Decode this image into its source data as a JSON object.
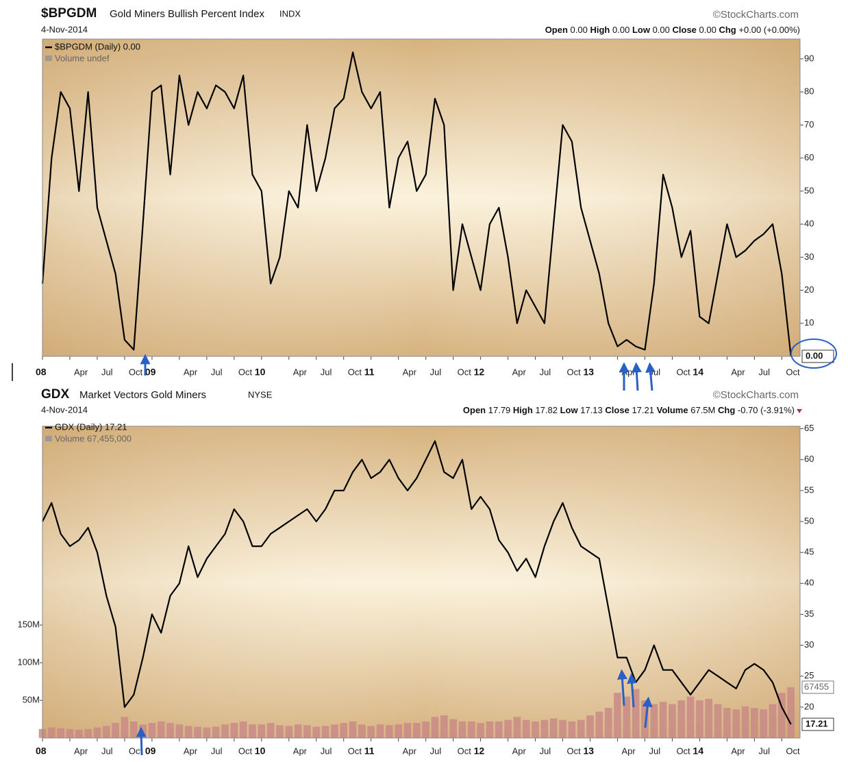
{
  "chart_data": [
    {
      "type": "line",
      "symbol": "$BPGDM",
      "title": "Gold Miners Bullish Percent Index",
      "exchange": "INDX",
      "source": "©StockCharts.com",
      "date": "4-Nov-2014",
      "header_stats": [
        {
          "label": "Open",
          "value": "0.00"
        },
        {
          "label": "High",
          "value": "0.00"
        },
        {
          "label": "Low",
          "value": "0.00"
        },
        {
          "label": "Close",
          "value": "0.00"
        },
        {
          "label": "Chg",
          "value": "+0.00 (+0.00%)"
        }
      ],
      "legend_main": "$BPGDM (Daily) 0.00",
      "legend_volume": "Volume undef",
      "last_label": "0.00",
      "x": [
        "2008-01",
        "2008-02",
        "2008-03",
        "2008-04",
        "2008-05",
        "2008-06",
        "2008-07",
        "2008-08",
        "2008-09",
        "2008-10",
        "2008-11",
        "2008-12",
        "2009-01",
        "2009-02",
        "2009-03",
        "2009-04",
        "2009-05",
        "2009-06",
        "2009-07",
        "2009-08",
        "2009-09",
        "2009-10",
        "2009-11",
        "2009-12",
        "2010-01",
        "2010-02",
        "2010-03",
        "2010-04",
        "2010-05",
        "2010-06",
        "2010-07",
        "2010-08",
        "2010-09",
        "2010-10",
        "2010-11",
        "2010-12",
        "2011-01",
        "2011-02",
        "2011-03",
        "2011-04",
        "2011-05",
        "2011-06",
        "2011-07",
        "2011-08",
        "2011-09",
        "2011-10",
        "2011-11",
        "2011-12",
        "2012-01",
        "2012-02",
        "2012-03",
        "2012-04",
        "2012-05",
        "2012-06",
        "2012-07",
        "2012-08",
        "2012-09",
        "2012-10",
        "2012-11",
        "2012-12",
        "2013-01",
        "2013-02",
        "2013-03",
        "2013-04",
        "2013-05",
        "2013-06",
        "2013-07",
        "2013-08",
        "2013-09",
        "2013-10",
        "2013-11",
        "2013-12",
        "2014-01",
        "2014-02",
        "2014-03",
        "2014-04",
        "2014-05",
        "2014-06",
        "2014-07",
        "2014-08",
        "2014-09",
        "2014-10",
        "2014-11"
      ],
      "series": [
        {
          "name": "$BPGDM",
          "color": "#000000",
          "values": [
            22,
            60,
            80,
            75,
            50,
            80,
            45,
            35,
            25,
            5,
            2,
            40,
            80,
            82,
            55,
            85,
            70,
            80,
            75,
            82,
            80,
            75,
            85,
            55,
            50,
            22,
            30,
            50,
            45,
            70,
            50,
            60,
            75,
            78,
            92,
            80,
            75,
            80,
            45,
            60,
            65,
            50,
            55,
            78,
            70,
            20,
            40,
            30,
            20,
            40,
            45,
            30,
            10,
            20,
            15,
            10,
            40,
            70,
            65,
            45,
            35,
            25,
            10,
            3,
            5,
            3,
            2,
            22,
            55,
            45,
            30,
            38,
            12,
            10,
            25,
            40,
            30,
            32,
            35,
            37,
            40,
            25,
            0
          ]
        }
      ],
      "xlim": [
        "2008-01",
        "2014-12"
      ],
      "xticks": [
        {
          "value": "2008-01",
          "label": "08"
        },
        {
          "value": "2008-04",
          "label": "Apr"
        },
        {
          "value": "2008-07",
          "label": "Jul"
        },
        {
          "value": "2008-10",
          "label": "Oct"
        },
        {
          "value": "2009-01",
          "label": "09"
        },
        {
          "value": "2009-04",
          "label": "Apr"
        },
        {
          "value": "2009-07",
          "label": "Jul"
        },
        {
          "value": "2009-10",
          "label": "Oct"
        },
        {
          "value": "2010-01",
          "label": "10"
        },
        {
          "value": "2010-04",
          "label": "Apr"
        },
        {
          "value": "2010-07",
          "label": "Jul"
        },
        {
          "value": "2010-10",
          "label": "Oct"
        },
        {
          "value": "2011-01",
          "label": "11"
        },
        {
          "value": "2011-04",
          "label": "Apr"
        },
        {
          "value": "2011-07",
          "label": "Jul"
        },
        {
          "value": "2011-10",
          "label": "Oct"
        },
        {
          "value": "2012-01",
          "label": "12"
        },
        {
          "value": "2012-04",
          "label": "Apr"
        },
        {
          "value": "2012-07",
          "label": "Jul"
        },
        {
          "value": "2012-10",
          "label": "Oct"
        },
        {
          "value": "2013-01",
          "label": "13"
        },
        {
          "value": "2013-04",
          "label": "Apr"
        },
        {
          "value": "2013-07",
          "label": "Jul"
        },
        {
          "value": "2013-10",
          "label": "Oct"
        },
        {
          "value": "2014-01",
          "label": "14"
        },
        {
          "value": "2014-04",
          "label": "Apr"
        },
        {
          "value": "2014-07",
          "label": "Jul"
        },
        {
          "value": "2014-10",
          "label": "Oct"
        }
      ],
      "ylim": [
        0,
        96
      ],
      "yticks": [
        10,
        20,
        30,
        40,
        50,
        60,
        70,
        80,
        90
      ],
      "grid": false
    },
    {
      "type": "line",
      "symbol": "GDX",
      "title": "Market Vectors Gold Miners",
      "exchange": "NYSE",
      "source": "©StockCharts.com",
      "date": "4-Nov-2014",
      "header_stats": [
        {
          "label": "Open",
          "value": "17.79"
        },
        {
          "label": "High",
          "value": "17.82"
        },
        {
          "label": "Low",
          "value": "17.13"
        },
        {
          "label": "Close",
          "value": "17.21"
        },
        {
          "label": "Volume",
          "value": "67.5M"
        },
        {
          "label": "Chg",
          "value": "-0.70 (-3.91%)"
        }
      ],
      "legend_main": "GDX (Daily) 17.21",
      "legend_volume": "Volume 67,455,000",
      "last_label": "17.21",
      "last_volume_label": "67455",
      "x": [
        "2008-01",
        "2008-02",
        "2008-03",
        "2008-04",
        "2008-05",
        "2008-06",
        "2008-07",
        "2008-08",
        "2008-09",
        "2008-10",
        "2008-11",
        "2008-12",
        "2009-01",
        "2009-02",
        "2009-03",
        "2009-04",
        "2009-05",
        "2009-06",
        "2009-07",
        "2009-08",
        "2009-09",
        "2009-10",
        "2009-11",
        "2009-12",
        "2010-01",
        "2010-02",
        "2010-03",
        "2010-04",
        "2010-05",
        "2010-06",
        "2010-07",
        "2010-08",
        "2010-09",
        "2010-10",
        "2010-11",
        "2010-12",
        "2011-01",
        "2011-02",
        "2011-03",
        "2011-04",
        "2011-05",
        "2011-06",
        "2011-07",
        "2011-08",
        "2011-09",
        "2011-10",
        "2011-11",
        "2011-12",
        "2012-01",
        "2012-02",
        "2012-03",
        "2012-04",
        "2012-05",
        "2012-06",
        "2012-07",
        "2012-08",
        "2012-09",
        "2012-10",
        "2012-11",
        "2012-12",
        "2013-01",
        "2013-02",
        "2013-03",
        "2013-04",
        "2013-05",
        "2013-06",
        "2013-07",
        "2013-08",
        "2013-09",
        "2013-10",
        "2013-11",
        "2013-12",
        "2014-01",
        "2014-02",
        "2014-03",
        "2014-04",
        "2014-05",
        "2014-06",
        "2014-07",
        "2014-08",
        "2014-09",
        "2014-10",
        "2014-11"
      ],
      "series": [
        {
          "name": "GDX",
          "color": "#000000",
          "values": [
            50,
            53,
            48,
            46,
            47,
            49,
            45,
            38,
            33,
            20,
            22,
            28,
            35,
            32,
            38,
            40,
            46,
            41,
            44,
            46,
            48,
            52,
            50,
            46,
            46,
            48,
            49,
            50,
            51,
            52,
            50,
            52,
            55,
            55,
            58,
            60,
            57,
            58,
            60,
            57,
            55,
            57,
            60,
            63,
            58,
            57,
            60,
            52,
            54,
            52,
            47,
            45,
            42,
            44,
            41,
            46,
            50,
            53,
            49,
            46,
            45,
            44,
            36,
            28,
            28,
            24,
            26,
            30,
            26,
            26,
            24,
            22,
            24,
            26,
            25,
            24,
            23,
            26,
            27,
            26,
            24,
            20,
            17.21
          ]
        },
        {
          "name": "Volume",
          "color": "#c98a86",
          "axis": "y2",
          "values": [
            12000000,
            14000000,
            13000000,
            12000000,
            11000000,
            12000000,
            14000000,
            16000000,
            20000000,
            28000000,
            22000000,
            18000000,
            20000000,
            22000000,
            20000000,
            18000000,
            16000000,
            15000000,
            14000000,
            15000000,
            18000000,
            20000000,
            22000000,
            18000000,
            18000000,
            20000000,
            17000000,
            16000000,
            18000000,
            17000000,
            15000000,
            16000000,
            18000000,
            20000000,
            22000000,
            18000000,
            16000000,
            18000000,
            17000000,
            18000000,
            20000000,
            20000000,
            22000000,
            28000000,
            30000000,
            25000000,
            22000000,
            22000000,
            20000000,
            22000000,
            22000000,
            24000000,
            28000000,
            24000000,
            22000000,
            24000000,
            26000000,
            24000000,
            22000000,
            24000000,
            30000000,
            35000000,
            40000000,
            60000000,
            55000000,
            65000000,
            50000000,
            45000000,
            48000000,
            45000000,
            50000000,
            55000000,
            50000000,
            52000000,
            45000000,
            40000000,
            38000000,
            42000000,
            40000000,
            38000000,
            45000000,
            60000000,
            67455000
          ]
        }
      ],
      "xlim": [
        "2008-01",
        "2014-12"
      ],
      "xticks": [
        {
          "value": "2008-01",
          "label": "08"
        },
        {
          "value": "2008-04",
          "label": "Apr"
        },
        {
          "value": "2008-07",
          "label": "Jul"
        },
        {
          "value": "2008-10",
          "label": "Oct"
        },
        {
          "value": "2009-01",
          "label": "09"
        },
        {
          "value": "2009-04",
          "label": "Apr"
        },
        {
          "value": "2009-07",
          "label": "Jul"
        },
        {
          "value": "2009-10",
          "label": "Oct"
        },
        {
          "value": "2010-01",
          "label": "10"
        },
        {
          "value": "2010-04",
          "label": "Apr"
        },
        {
          "value": "2010-07",
          "label": "Jul"
        },
        {
          "value": "2010-10",
          "label": "Oct"
        },
        {
          "value": "2011-01",
          "label": "11"
        },
        {
          "value": "2011-04",
          "label": "Apr"
        },
        {
          "value": "2011-07",
          "label": "Jul"
        },
        {
          "value": "2011-10",
          "label": "Oct"
        },
        {
          "value": "2012-01",
          "label": "12"
        },
        {
          "value": "2012-04",
          "label": "Apr"
        },
        {
          "value": "2012-07",
          "label": "Jul"
        },
        {
          "value": "2012-10",
          "label": "Oct"
        },
        {
          "value": "2013-01",
          "label": "13"
        },
        {
          "value": "2013-04",
          "label": "Apr"
        },
        {
          "value": "2013-07",
          "label": "Jul"
        },
        {
          "value": "2013-10",
          "label": "Oct"
        },
        {
          "value": "2014-01",
          "label": "14"
        },
        {
          "value": "2014-04",
          "label": "Apr"
        },
        {
          "value": "2014-07",
          "label": "Jul"
        },
        {
          "value": "2014-10",
          "label": "Oct"
        }
      ],
      "ylim": [
        15,
        65.4
      ],
      "yticks": [
        20,
        25,
        30,
        35,
        40,
        45,
        50,
        55,
        60,
        65
      ],
      "y2lim": [
        0,
        414000000
      ],
      "y2ticks": [
        {
          "value": 50000000,
          "label": "50M"
        },
        {
          "value": 100000000,
          "label": "100M"
        },
        {
          "value": 150000000,
          "label": "150M"
        }
      ],
      "grid": false
    }
  ]
}
